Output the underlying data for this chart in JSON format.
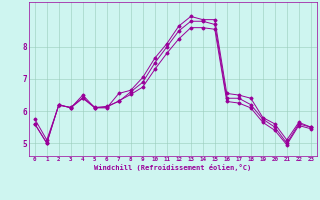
{
  "xlabel": "Windchill (Refroidissement éolien,°C)",
  "background_color": "#cef5f0",
  "line_color": "#990099",
  "x_ticks": [
    0,
    1,
    2,
    3,
    4,
    5,
    6,
    7,
    8,
    9,
    10,
    11,
    12,
    13,
    14,
    15,
    16,
    17,
    18,
    19,
    20,
    21,
    22,
    23
  ],
  "y_ticks": [
    5,
    6,
    7,
    8
  ],
  "ylim": [
    4.6,
    9.4
  ],
  "xlim": [
    -0.5,
    23.5
  ],
  "lines": [
    {
      "x": [
        0,
        1,
        2,
        3,
        4,
        5,
        6,
        7,
        8,
        9,
        10,
        11,
        12,
        13,
        14,
        15,
        16,
        17,
        18,
        19,
        20,
        21,
        22,
        23
      ],
      "y": [
        5.6,
        5.0,
        6.2,
        6.1,
        6.5,
        6.1,
        6.1,
        6.55,
        6.65,
        7.05,
        7.65,
        8.1,
        8.65,
        8.95,
        8.85,
        8.85,
        6.55,
        6.5,
        6.4,
        5.8,
        5.6,
        5.1,
        5.65,
        5.5
      ]
    },
    {
      "x": [
        0,
        1,
        2,
        3,
        4,
        5,
        6,
        7,
        8,
        9,
        10,
        11,
        12,
        13,
        14,
        15,
        16,
        17,
        18,
        19,
        20,
        21,
        22,
        23
      ],
      "y": [
        5.6,
        5.0,
        6.2,
        6.1,
        6.4,
        6.1,
        6.15,
        6.3,
        6.6,
        6.9,
        7.5,
        8.0,
        8.5,
        8.8,
        8.8,
        8.7,
        6.4,
        6.4,
        6.2,
        5.75,
        5.5,
        5.0,
        5.6,
        5.5
      ]
    },
    {
      "x": [
        0,
        1,
        2,
        3,
        4,
        5,
        6,
        7,
        8,
        9,
        10,
        11,
        12,
        13,
        14,
        15,
        16,
        17,
        18,
        19,
        20,
        21,
        22,
        23
      ],
      "y": [
        5.75,
        5.1,
        6.18,
        6.12,
        6.42,
        6.12,
        6.12,
        6.32,
        6.52,
        6.75,
        7.3,
        7.8,
        8.25,
        8.6,
        8.6,
        8.55,
        6.3,
        6.25,
        6.1,
        5.65,
        5.4,
        4.95,
        5.55,
        5.45
      ]
    }
  ]
}
